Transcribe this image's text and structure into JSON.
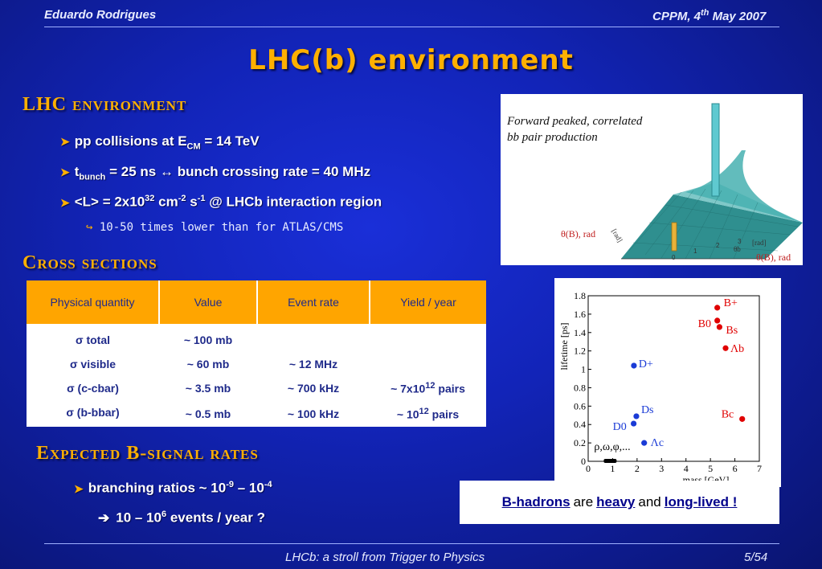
{
  "header": {
    "author": "Eduardo Rodrigues",
    "venue": "CPPM, 4",
    "venue_sup": "th",
    "venue_rest": " May 2007"
  },
  "title": "LHC(b) environment",
  "section1": {
    "heading": "LHC environment",
    "b1_pre": "pp collisions at E",
    "b1_sub": "CM",
    "b1_post": " = 14 TeV",
    "b2_pre": "t",
    "b2_sub": "bunch",
    "b2_post": " = 25 ns  ↔ bunch crossing rate = 40 MHz",
    "b3_a": "<L> = 2x10",
    "b3_sup1": "32",
    "b3_b": " cm",
    "b3_sup2": "-2",
    "b3_c": " s",
    "b3_sup3": "-1",
    "b3_d": " @ LHCb interaction region",
    "sub1": "10-50 times lower than for ATLAS/CMS"
  },
  "figure1": {
    "caption_l1": "Forward peaked, correlated",
    "caption_l2": "bb pair production",
    "label_left": "θ(B), rad",
    "label_right": "θ(B), rad",
    "theta_b_axis": "θb",
    "rad_axis": "[rad]",
    "tick_0": "0",
    "tick_1": "1",
    "tick_2": "2",
    "tick_3": "3"
  },
  "section2": {
    "heading": "Cross sections",
    "table": {
      "headers": [
        "Physical quantity",
        "Value",
        "Event rate",
        "Yield / year"
      ],
      "rows": [
        {
          "q": "σ total",
          "v": "~ 100 mb",
          "r": "",
          "y": "",
          "y_sup": "",
          "y_post": ""
        },
        {
          "q": "σ visible",
          "v": "~ 60 mb",
          "r": "~ 12 MHz",
          "y": "",
          "y_sup": "",
          "y_post": ""
        },
        {
          "q": "σ (c-cbar)",
          "v": "~ 3.5 mb",
          "r": "~ 700 kHz",
          "y": "~ 7x10",
          "y_sup": "12",
          "y_post": " pairs"
        },
        {
          "q": "σ (b-bbar)",
          "v": "~ 0.5 mb",
          "r": "~ 100 kHz",
          "y": "~ 10",
          "y_sup": "12",
          "y_post": " pairs"
        }
      ]
    }
  },
  "section3": {
    "heading": "Expected B-signal rates",
    "b1_pre": "branching ratios ~ 10",
    "b1_sup1": "-9",
    "b1_mid": " – 10",
    "b1_sup2": "-4",
    "b2_pre": "10 – 10",
    "b2_sup": "6",
    "b2_post": " events / year ?"
  },
  "chart_data": {
    "type": "scatter",
    "title": "",
    "xlabel": "mass [GeV]",
    "ylabel": "lifetime [ps]",
    "xlim": [
      0,
      7
    ],
    "ylim": [
      0,
      1.8
    ],
    "xticks": [
      "0",
      "1",
      "2",
      "3",
      "4",
      "5",
      "6",
      "7"
    ],
    "yticks": [
      "0",
      "0.2",
      "0.4",
      "0.6",
      "0.8",
      "1",
      "1.2",
      "1.4",
      "1.6",
      "1.8"
    ],
    "series": [
      {
        "name": "",
        "color": "#e00000",
        "points": [
          {
            "label": "B+",
            "x": 5.28,
            "y": 1.67
          },
          {
            "label": "B0",
            "x": 5.28,
            "y": 1.53
          },
          {
            "label": "Bs",
            "x": 5.37,
            "y": 1.46
          },
          {
            "label": "Λb",
            "x": 5.62,
            "y": 1.23
          },
          {
            "label": "Bc",
            "x": 6.3,
            "y": 0.46
          }
        ]
      },
      {
        "name": "",
        "color": "#1a3bd6",
        "points": [
          {
            "label": "D+",
            "x": 1.87,
            "y": 1.04
          },
          {
            "label": "D0",
            "x": 1.86,
            "y": 0.41
          },
          {
            "label": "Ds",
            "x": 1.97,
            "y": 0.49
          },
          {
            "label": "Λc",
            "x": 2.29,
            "y": 0.2
          }
        ]
      },
      {
        "name": "",
        "color": "#000000",
        "points": [
          {
            "label": "ρ,ω,φ,...",
            "x": 0.9,
            "y": 0.0
          }
        ]
      }
    ]
  },
  "caption": {
    "a": "B-hadrons",
    "b": "are",
    "c": "heavy",
    "d": "and",
    "e": "long-lived !"
  },
  "footer": {
    "text": "LHCb: a stroll from Trigger to Physics",
    "page": "5/54"
  }
}
